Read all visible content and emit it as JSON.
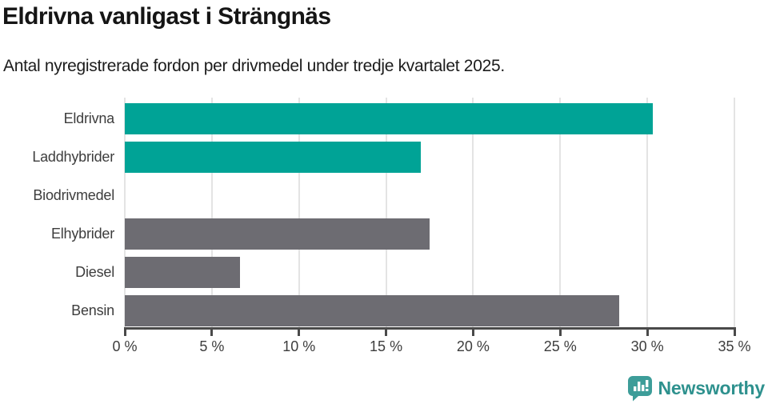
{
  "header": {
    "title": "Eldrivna vanligast i Strängnäs",
    "subtitle": "Antal nyregistrerade fordon per drivmedel under tredje kvartalet 2025."
  },
  "chart_data": {
    "type": "bar",
    "orientation": "horizontal",
    "title": "Eldrivna vanligast i Strängnäs",
    "subtitle": "Antal nyregistrerade fordon per drivmedel under tredje kvartalet 2025.",
    "categories": [
      "Eldrivna",
      "Laddhybrider",
      "Biodrivmedel",
      "Elhybrider",
      "Diesel",
      "Bensin"
    ],
    "values": [
      30.3,
      17.0,
      0,
      17.5,
      6.6,
      28.4
    ],
    "unit": "%",
    "bar_colors": [
      "#00a396",
      "#00a396",
      "#00a396",
      "#6d6c72",
      "#6d6c72",
      "#6d6c72"
    ],
    "xlabel": "",
    "ylabel": "",
    "xlim": [
      0,
      35
    ],
    "xticks": [
      0,
      5,
      10,
      15,
      20,
      25,
      30,
      35
    ],
    "xtick_labels": [
      "0 %",
      "5 %",
      "10 %",
      "15 %",
      "20 %",
      "25 %",
      "30 %",
      "35 %"
    ],
    "grid": true,
    "legend": false
  },
  "branding": {
    "logo_text": "Newsworthy",
    "logo_icon": "newsworthy-speech-bubble-barchart-icon",
    "logo_color": "#2e918e",
    "logo_icon_color": "#3d9d99"
  },
  "colors": {
    "accent_teal": "#00a396",
    "neutral_gray": "#6d6c72",
    "gridline": "#e4e4e4",
    "axis": "#4a4a4a",
    "label_text": "#3d3d3d",
    "title_text": "#151515",
    "background": "#ffffff"
  }
}
